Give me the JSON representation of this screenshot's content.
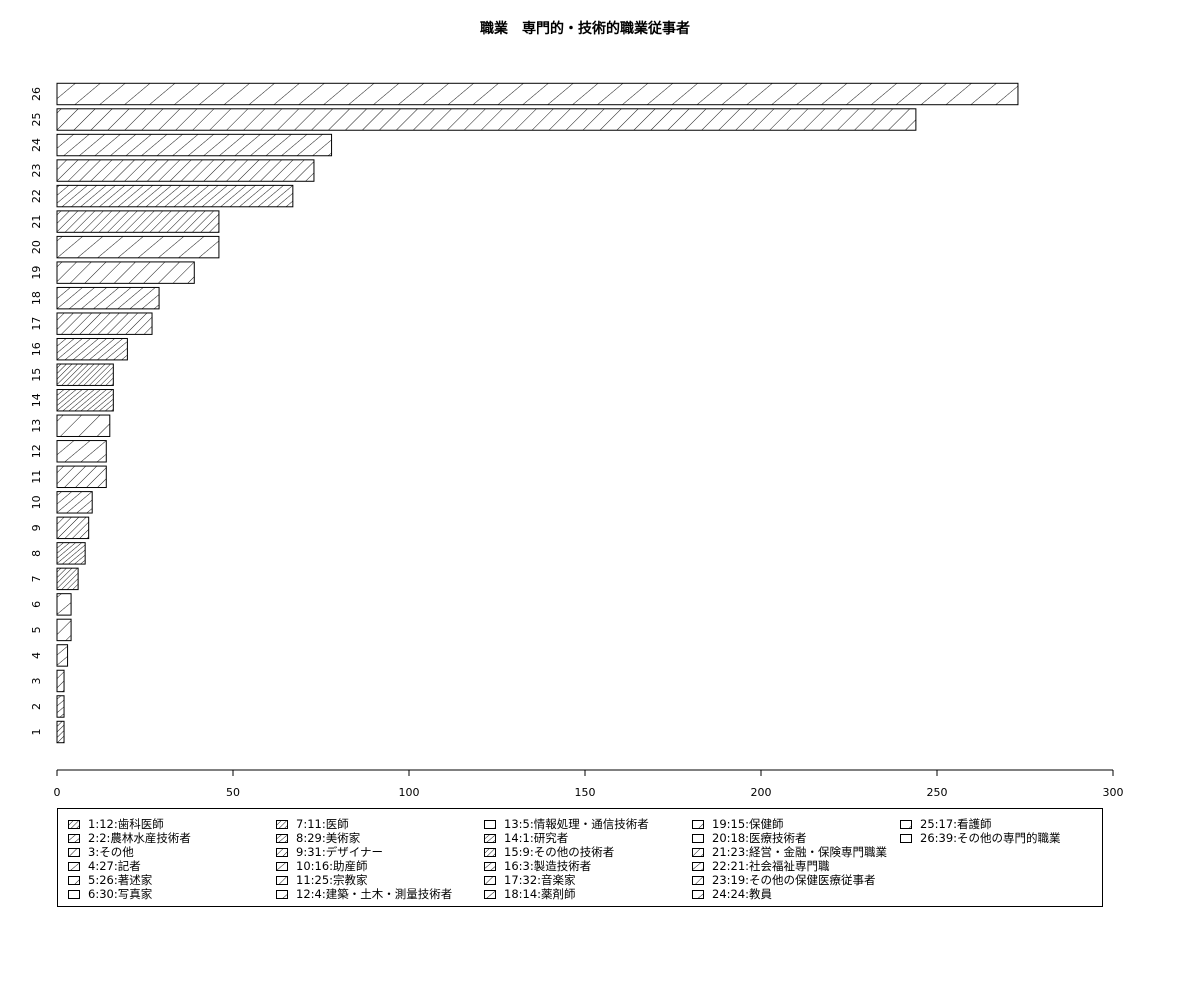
{
  "chart_data": {
    "type": "bar",
    "orientation": "horizontal",
    "title": "職業　専門的・技術的職業従事者",
    "xlabel": "",
    "ylabel": "",
    "xlim": [
      0,
      300
    ],
    "x_ticks": [
      0,
      50,
      100,
      150,
      200,
      250,
      300
    ],
    "categories": [
      "1",
      "2",
      "3",
      "4",
      "5",
      "6",
      "7",
      "8",
      "9",
      "10",
      "11",
      "12",
      "13",
      "14",
      "15",
      "16",
      "17",
      "18",
      "19",
      "20",
      "21",
      "22",
      "23",
      "24",
      "25",
      "26"
    ],
    "values": [
      2,
      2,
      2,
      3,
      4,
      4,
      6,
      8,
      9,
      10,
      14,
      14,
      15,
      16,
      16,
      20,
      27,
      29,
      39,
      46,
      46,
      67,
      73,
      78,
      244,
      273
    ],
    "legend": [
      "1:12:歯科医師",
      "2:2:農林水産技術者",
      "3:その他",
      "4:27:記者",
      "5:26:著述家",
      "6:30:写真家",
      "7:11:医師",
      "8:29:美術家",
      "9:31:デザイナー",
      "10:16:助産師",
      "11:25:宗教家",
      "12:4:建築・土木・測量技術者",
      "13:5:情報処理・通信技術者",
      "14:1:研究者",
      "15:9:その他の技術者",
      "16:3:製造技術者",
      "17:32:音楽家",
      "18:14:薬剤師",
      "19:15:保健師",
      "20:18:医療技術者",
      "21:23:経営・金融・保険専門職業",
      "22:21:社会福祉専門職",
      "23:19:その他の保健医療従事者",
      "24:24:教員",
      "25:17:看護師",
      "26:39:その他の専門的職業"
    ],
    "grid": false,
    "legend_placement": "bottom",
    "fill": "hatched (angled line shading, angle/density vary per bar)",
    "bar_color": "#ffffff",
    "line_color": "#000000"
  }
}
